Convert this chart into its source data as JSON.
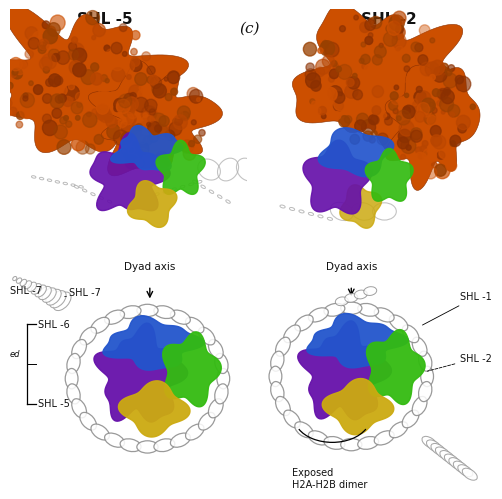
{
  "title_left": "SHL -5",
  "title_right": "SHL -2",
  "label_c": "(c)",
  "panel_bg": "#ffffff",
  "text_color": "#111111",
  "orange_main": "#cc4f00",
  "orange_dark": "#8b3000",
  "orange_mid": "#b84500",
  "blue_color": "#2255cc",
  "purple_color": "#6611aa",
  "green_color": "#33bb11",
  "yellow_color": "#ccaa11",
  "dna_color": "#aaaaaa",
  "dna_dark": "#888888",
  "title_fontsize": 11,
  "label_fontsize": 7,
  "annotation_fontsize": 7,
  "dyad_fontsize": 7.5,
  "dyad_axis": "Dyad axis",
  "annotation_exposed": "Exposed\nH2A-H2B dimer"
}
